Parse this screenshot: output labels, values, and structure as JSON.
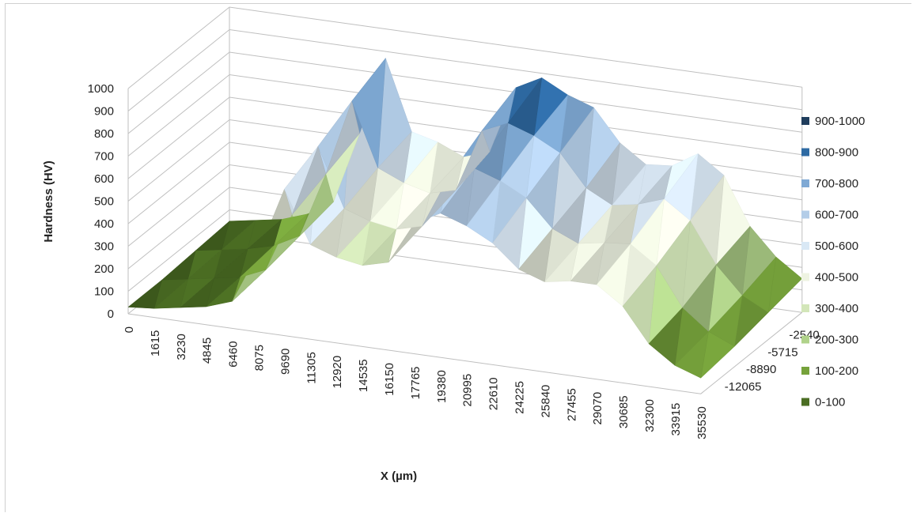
{
  "chart_data": {
    "type": "surface",
    "xlabel": "X (µm)",
    "ylabel": "",
    "zlabel": "Hardness (HV)",
    "z_ticks": [
      0,
      100,
      200,
      300,
      400,
      500,
      600,
      700,
      800,
      900,
      1000
    ],
    "zlim": [
      0,
      1000
    ],
    "x_ticks": [
      0,
      1615,
      3230,
      4845,
      6460,
      8075,
      9690,
      11305,
      12920,
      14535,
      16150,
      17765,
      19380,
      20995,
      22610,
      24225,
      25840,
      27455,
      29070,
      30685,
      32300,
      33915,
      35530
    ],
    "y_ticks": [
      -2540,
      -5715,
      -8890,
      -12065
    ],
    "grid": true,
    "legend_position": "right",
    "legend": [
      {
        "label": "900-1000",
        "color": "#1f3d5c"
      },
      {
        "label": "800-900",
        "color": "#2e6aa3"
      },
      {
        "label": "700-800",
        "color": "#7fa9d4"
      },
      {
        "label": "600-700",
        "color": "#b3cde8"
      },
      {
        "label": "500-600",
        "color": "#d9e8f5"
      },
      {
        "label": "400-500",
        "color": "#eef3e2"
      },
      {
        "label": "300-400",
        "color": "#d3e6b9"
      },
      {
        "label": "200-300",
        "color": "#b0d28a"
      },
      {
        "label": "100-200",
        "color": "#76a23b"
      },
      {
        "label": "0-100",
        "color": "#4b6e23"
      }
    ],
    "series_profiles": [
      {
        "y": -2540,
        "values": [
          50,
          70,
          90,
          130,
          200,
          520,
          870,
          560,
          530,
          480,
          520,
          820,
          880,
          820,
          780,
          640,
          560,
          570,
          640,
          560,
          350,
          230,
          150
        ]
      },
      {
        "y": -5715,
        "values": [
          40,
          60,
          80,
          110,
          170,
          460,
          800,
          520,
          470,
          440,
          470,
          750,
          800,
          760,
          700,
          560,
          500,
          520,
          560,
          480,
          300,
          180,
          120
        ]
      },
      {
        "y": -8890,
        "values": [
          30,
          50,
          70,
          90,
          140,
          400,
          720,
          460,
          420,
          400,
          430,
          660,
          720,
          680,
          620,
          500,
          450,
          470,
          480,
          400,
          230,
          140,
          90
        ]
      },
      {
        "y": -12065,
        "values": [
          30,
          40,
          60,
          80,
          120,
          350,
          650,
          420,
          380,
          360,
          390,
          580,
          640,
          600,
          540,
          440,
          400,
          420,
          420,
          340,
          190,
          110,
          70
        ]
      }
    ]
  }
}
